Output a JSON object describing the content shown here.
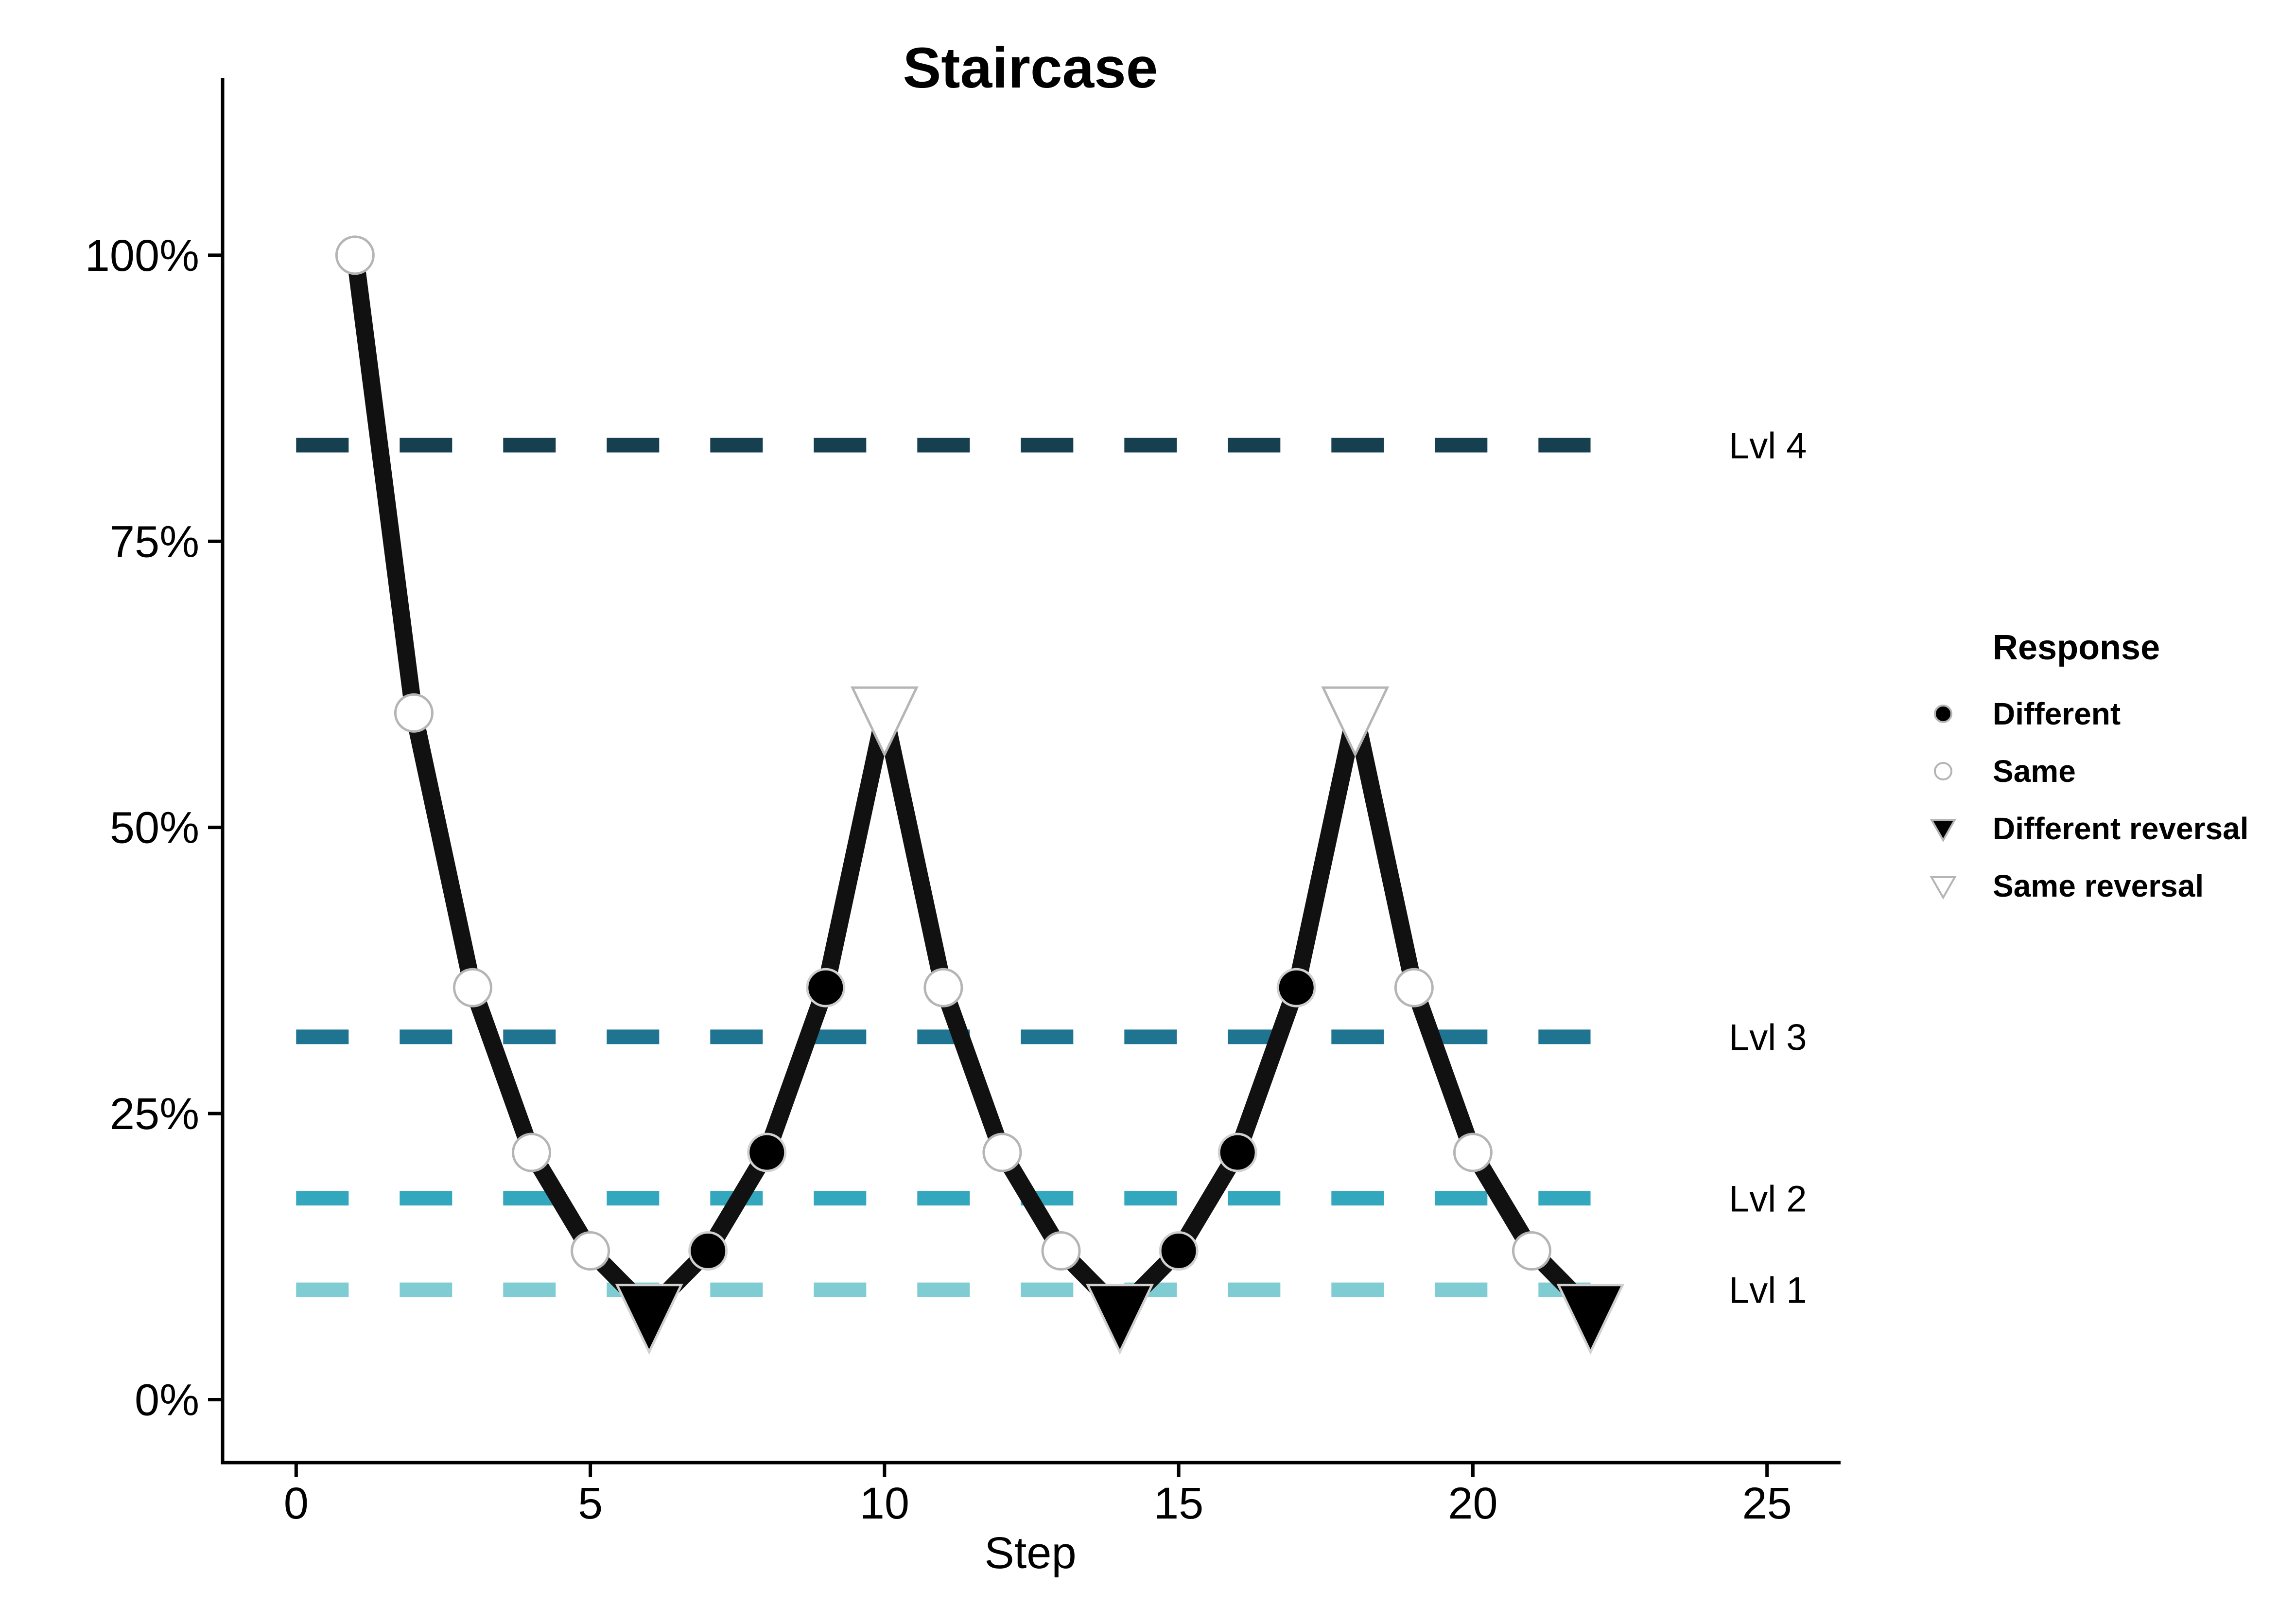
{
  "chart_data": {
    "type": "line",
    "title": "Staircase",
    "xlabel": "Step",
    "ylabel": "",
    "xlim": [
      -1.25,
      26.25
    ],
    "ylim": [
      -0.055,
      1.155
    ],
    "x_ticks": [
      0,
      5,
      10,
      15,
      20,
      25
    ],
    "x_tick_labels": [
      "0",
      "5",
      "10",
      "15",
      "20",
      "25"
    ],
    "y_ticks": [
      0,
      0.25,
      0.5,
      0.75,
      1.0
    ],
    "y_tick_labels": [
      "0%",
      "25%",
      "50%",
      "75%",
      "100%"
    ],
    "grid": false,
    "legend_position": "right",
    "line_color": "#111111",
    "series": [
      {
        "points": [
          {
            "x": 1,
            "y": 1.0,
            "response": "Same"
          },
          {
            "x": 2,
            "y": 0.6,
            "response": "Same"
          },
          {
            "x": 3,
            "y": 0.36,
            "response": "Same"
          },
          {
            "x": 4,
            "y": 0.216,
            "response": "Same"
          },
          {
            "x": 5,
            "y": 0.13,
            "response": "Same"
          },
          {
            "x": 6,
            "y": 0.078,
            "response": "Different reversal"
          },
          {
            "x": 7,
            "y": 0.13,
            "response": "Different"
          },
          {
            "x": 8,
            "y": 0.216,
            "response": "Different"
          },
          {
            "x": 9,
            "y": 0.36,
            "response": "Different"
          },
          {
            "x": 10,
            "y": 0.6,
            "response": "Same reversal"
          },
          {
            "x": 11,
            "y": 0.36,
            "response": "Same"
          },
          {
            "x": 12,
            "y": 0.216,
            "response": "Same"
          },
          {
            "x": 13,
            "y": 0.13,
            "response": "Same"
          },
          {
            "x": 14,
            "y": 0.078,
            "response": "Different reversal"
          },
          {
            "x": 15,
            "y": 0.13,
            "response": "Different"
          },
          {
            "x": 16,
            "y": 0.216,
            "response": "Different"
          },
          {
            "x": 17,
            "y": 0.36,
            "response": "Different"
          },
          {
            "x": 18,
            "y": 0.6,
            "response": "Same reversal"
          },
          {
            "x": 19,
            "y": 0.36,
            "response": "Same"
          },
          {
            "x": 20,
            "y": 0.216,
            "response": "Same"
          },
          {
            "x": 21,
            "y": 0.13,
            "response": "Same"
          },
          {
            "x": 22,
            "y": 0.078,
            "response": "Different reversal"
          }
        ]
      }
    ],
    "reference_lines": [
      {
        "label": "Lvl 4",
        "y": 0.834,
        "x_range": [
          0,
          22
        ],
        "color": "#163F4F"
      },
      {
        "label": "Lvl 3",
        "y": 0.317,
        "x_range": [
          0,
          22
        ],
        "color": "#1F7591"
      },
      {
        "label": "Lvl 2",
        "y": 0.176,
        "x_range": [
          0,
          22
        ],
        "color": "#33A7BD"
      },
      {
        "label": "Lvl 1",
        "y": 0.096,
        "x_range": [
          0,
          22
        ],
        "color": "#80CCD3"
      }
    ],
    "legend": {
      "title": "Response",
      "entries": [
        {
          "label": "Different",
          "shape": "circle",
          "fill": "#000000"
        },
        {
          "label": "Same",
          "shape": "circle",
          "fill": "#ffffff"
        },
        {
          "label": "Different reversal",
          "shape": "triangle-down",
          "fill": "#000000"
        },
        {
          "label": "Same reversal",
          "shape": "triangle-down",
          "fill": "#ffffff"
        }
      ]
    }
  }
}
